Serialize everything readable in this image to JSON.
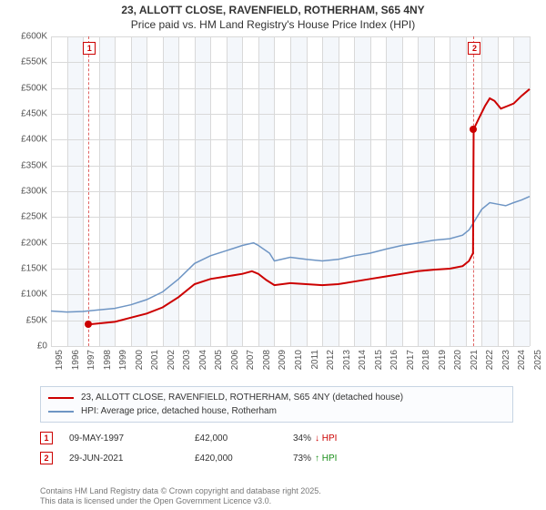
{
  "title": {
    "line1": "23, ALLOTT CLOSE, RAVENFIELD, ROTHERHAM, S65 4NY",
    "line2": "Price paid vs. HM Land Registry's House Price Index (HPI)"
  },
  "chart": {
    "type": "line",
    "background_color": "#ffffff",
    "alt_band_color": "#f4f7fb",
    "grid_color": "#d9d9d9",
    "x": {
      "min": 1995,
      "max": 2025,
      "ticks": [
        1995,
        1996,
        1997,
        1998,
        1999,
        2000,
        2001,
        2002,
        2003,
        2004,
        2005,
        2006,
        2007,
        2008,
        2009,
        2010,
        2011,
        2012,
        2013,
        2014,
        2015,
        2016,
        2017,
        2018,
        2019,
        2020,
        2021,
        2022,
        2023,
        2024,
        2025
      ]
    },
    "y": {
      "min": 0,
      "max": 600000,
      "ticks": [
        0,
        50000,
        100000,
        150000,
        200000,
        250000,
        300000,
        350000,
        400000,
        450000,
        500000,
        550000,
        600000
      ],
      "tick_labels": [
        "£0",
        "£50K",
        "£100K",
        "£150K",
        "£200K",
        "£250K",
        "£300K",
        "£350K",
        "£400K",
        "£450K",
        "£500K",
        "£550K",
        "£600K"
      ]
    },
    "series": {
      "price": {
        "label": "23, ALLOTT CLOSE, RAVENFIELD, ROTHERHAM, S65 4NY (detached house)",
        "color": "#cc0000",
        "width": 2,
        "points": [
          [
            1997.35,
            42000
          ],
          [
            1998,
            44000
          ],
          [
            1999,
            47000
          ],
          [
            2000,
            55000
          ],
          [
            2001,
            63000
          ],
          [
            2002,
            75000
          ],
          [
            2003,
            95000
          ],
          [
            2004,
            120000
          ],
          [
            2005,
            130000
          ],
          [
            2006,
            135000
          ],
          [
            2007,
            140000
          ],
          [
            2007.6,
            145000
          ],
          [
            2008,
            140000
          ],
          [
            2008.5,
            128000
          ],
          [
            2009,
            118000
          ],
          [
            2010,
            122000
          ],
          [
            2011,
            120000
          ],
          [
            2012,
            118000
          ],
          [
            2013,
            120000
          ],
          [
            2014,
            125000
          ],
          [
            2015,
            130000
          ],
          [
            2016,
            135000
          ],
          [
            2017,
            140000
          ],
          [
            2018,
            145000
          ],
          [
            2019,
            148000
          ],
          [
            2020,
            150000
          ],
          [
            2020.8,
            155000
          ],
          [
            2021.2,
            165000
          ],
          [
            2021.45,
            180000
          ],
          [
            2021.49,
            420000
          ],
          [
            2021.8,
            440000
          ],
          [
            2022.2,
            465000
          ],
          [
            2022.5,
            480000
          ],
          [
            2022.8,
            475000
          ],
          [
            2023.2,
            460000
          ],
          [
            2023.6,
            465000
          ],
          [
            2024,
            470000
          ],
          [
            2024.5,
            485000
          ],
          [
            2025,
            498000
          ]
        ]
      },
      "hpi": {
        "label": "HPI: Average price, detached house, Rotherham",
        "color": "#6e95c4",
        "width": 1.5,
        "points": [
          [
            1995,
            68000
          ],
          [
            1996,
            66000
          ],
          [
            1997,
            67000
          ],
          [
            1998,
            70000
          ],
          [
            1999,
            73000
          ],
          [
            2000,
            80000
          ],
          [
            2001,
            90000
          ],
          [
            2002,
            105000
          ],
          [
            2003,
            130000
          ],
          [
            2004,
            160000
          ],
          [
            2005,
            175000
          ],
          [
            2006,
            185000
          ],
          [
            2007,
            195000
          ],
          [
            2007.7,
            200000
          ],
          [
            2008,
            195000
          ],
          [
            2008.7,
            180000
          ],
          [
            2009,
            165000
          ],
          [
            2010,
            172000
          ],
          [
            2011,
            168000
          ],
          [
            2012,
            165000
          ],
          [
            2013,
            168000
          ],
          [
            2014,
            175000
          ],
          [
            2015,
            180000
          ],
          [
            2016,
            188000
          ],
          [
            2017,
            195000
          ],
          [
            2018,
            200000
          ],
          [
            2019,
            205000
          ],
          [
            2020,
            208000
          ],
          [
            2020.8,
            215000
          ],
          [
            2021.2,
            225000
          ],
          [
            2021.6,
            245000
          ],
          [
            2022,
            265000
          ],
          [
            2022.5,
            278000
          ],
          [
            2023,
            275000
          ],
          [
            2023.5,
            272000
          ],
          [
            2024,
            278000
          ],
          [
            2024.5,
            283000
          ],
          [
            2025,
            290000
          ]
        ]
      }
    },
    "markers": [
      {
        "n": "1",
        "x": 1997.35,
        "y": 42000,
        "dot": true
      },
      {
        "n": "2",
        "x": 2021.49,
        "y": 420000,
        "dot": true
      }
    ]
  },
  "transactions": [
    {
      "n": "1",
      "date": "09-MAY-1997",
      "price": "£42,000",
      "delta": "34%",
      "dir": "down",
      "dir_label": "↓ HPI"
    },
    {
      "n": "2",
      "date": "29-JUN-2021",
      "price": "£420,000",
      "delta": "73%",
      "dir": "up",
      "dir_label": "↑ HPI"
    }
  ],
  "footer": {
    "l1": "Contains HM Land Registry data © Crown copyright and database right 2025.",
    "l2": "This data is licensed under the Open Government Licence v3.0."
  },
  "colors": {
    "down": "#cc0000",
    "up": "#1a8f1a"
  }
}
